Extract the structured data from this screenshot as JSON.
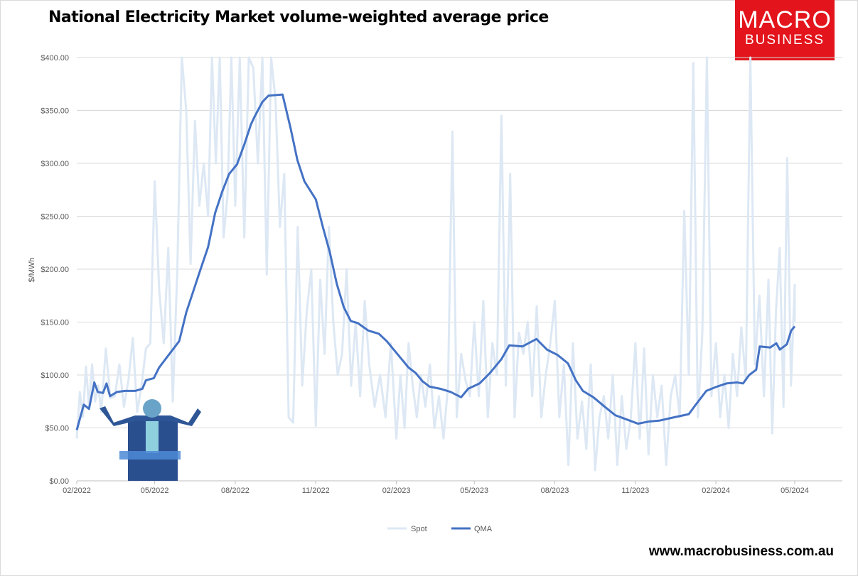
{
  "chart_data": {
    "type": "line",
    "title": "National Electricity Market volume-weighted average price",
    "ylabel": "$/MWh",
    "xlabel": "",
    "ylim": [
      0,
      400
    ],
    "yticks": [
      "$0.00",
      "$50.00",
      "$100.00",
      "$150.00",
      "$200.00",
      "$250.00",
      "$300.00",
      "$350.00",
      "$400.00"
    ],
    "xticks": [
      {
        "date": "2022-02-01",
        "label": "02/2022"
      },
      {
        "date": "2022-05-01",
        "label": "05/2022"
      },
      {
        "date": "2022-08-01",
        "label": "08/2022"
      },
      {
        "date": "2022-11-01",
        "label": "11/2022"
      },
      {
        "date": "2023-02-01",
        "label": "02/2023"
      },
      {
        "date": "2023-05-01",
        "label": "05/2023"
      },
      {
        "date": "2023-08-01",
        "label": "08/2023"
      },
      {
        "date": "2023-11-01",
        "label": "11/2023"
      },
      {
        "date": "2024-02-01",
        "label": "02/2024"
      },
      {
        "date": "2024-05-01",
        "label": "05/2024"
      }
    ],
    "grid": true,
    "legend_position": "bottom",
    "series": [
      {
        "name": "Spot",
        "color": "#dde8f4",
        "monthly_values": [
          {
            "month": "2022-02",
            "values": [
              40,
              84,
              60,
              108,
              70,
              110,
              75,
              90
            ]
          },
          {
            "month": "2022-03",
            "values": [
              65,
              125,
              78,
              80,
              110,
              70
            ]
          },
          {
            "month": "2022-04",
            "values": [
              95,
              135,
              65,
              90,
              125,
              130
            ]
          },
          {
            "month": "2022-05",
            "values": [
              283,
              180,
              130,
              220,
              75,
              200
            ]
          },
          {
            "month": "2022-06",
            "values": [
              400,
              350,
              205,
              340,
              260,
              300
            ]
          },
          {
            "month": "2022-07",
            "values": [
              250,
              400,
              300,
              400,
              230,
              270,
              400
            ]
          },
          {
            "month": "2022-08",
            "values": [
              260,
              400,
              230,
              400,
              390,
              300
            ]
          },
          {
            "month": "2022-09",
            "values": [
              400,
              195,
              400,
              360,
              240,
              290
            ]
          },
          {
            "month": "2022-10",
            "values": [
              60,
              55,
              240,
              90,
              160,
              200
            ]
          },
          {
            "month": "2022-11",
            "values": [
              52,
              190,
              120,
              240,
              150,
              100
            ]
          },
          {
            "month": "2022-12",
            "values": [
              120,
              200,
              90,
              150,
              80,
              170
            ]
          },
          {
            "month": "2023-01",
            "values": [
              110,
              70,
              100,
              60,
              130
            ]
          },
          {
            "month": "2023-02",
            "values": [
              40,
              100,
              50,
              130,
              90,
              60
            ]
          },
          {
            "month": "2023-03",
            "values": [
              100,
              70,
              110,
              50,
              80,
              40
            ]
          },
          {
            "month": "2023-04",
            "values": [
              90,
              330,
              60,
              120,
              95,
              80
            ]
          },
          {
            "month": "2023-05",
            "values": [
              150,
              80,
              170,
              60,
              130,
              100
            ]
          },
          {
            "month": "2023-06",
            "values": [
              345,
              90,
              290,
              60,
              140,
              120
            ]
          },
          {
            "month": "2023-07",
            "values": [
              150,
              80,
              165,
              60,
              100,
              130
            ]
          },
          {
            "month": "2023-08",
            "values": [
              170,
              60,
              110,
              15,
              130,
              40
            ]
          },
          {
            "month": "2023-09",
            "values": [
              75,
              30,
              110,
              10,
              60,
              80
            ]
          },
          {
            "month": "2023-10",
            "values": [
              40,
              100,
              15,
              80,
              30,
              60
            ]
          },
          {
            "month": "2023-11",
            "values": [
              130,
              40,
              125,
              25,
              100,
              60
            ]
          },
          {
            "month": "2023-12",
            "values": [
              90,
              15,
              80,
              100,
              60,
              255
            ]
          },
          {
            "month": "2024-01",
            "values": [
              100,
              395,
              60,
              140,
              400,
              80
            ]
          },
          {
            "month": "2024-02",
            "values": [
              130,
              60,
              100,
              50,
              120,
              80
            ]
          },
          {
            "month": "2024-03",
            "values": [
              145,
              95,
              400,
              110,
              175,
              80
            ]
          },
          {
            "month": "2024-04",
            "values": [
              190,
              45,
              160,
              220,
              70,
              305,
              90
            ]
          },
          {
            "month": "2024-05",
            "values": [
              185,
              150
            ]
          }
        ]
      },
      {
        "name": "QMA",
        "color": "#4472c4",
        "points": [
          [
            "2022-02-01",
            48
          ],
          [
            "2022-02-09",
            72
          ],
          [
            "2022-02-15",
            68
          ],
          [
            "2022-02-21",
            93
          ],
          [
            "2022-02-25",
            84
          ],
          [
            "2022-03-03",
            83
          ],
          [
            "2022-03-07",
            92
          ],
          [
            "2022-03-11",
            80
          ],
          [
            "2022-03-19",
            84
          ],
          [
            "2022-03-28",
            85
          ],
          [
            "2022-04-09",
            85
          ],
          [
            "2022-04-17",
            87
          ],
          [
            "2022-04-21",
            95
          ],
          [
            "2022-04-30",
            97
          ],
          [
            "2022-05-06",
            107
          ],
          [
            "2022-05-17",
            119
          ],
          [
            "2022-05-29",
            132
          ],
          [
            "2022-06-06",
            159
          ],
          [
            "2022-06-14",
            179
          ],
          [
            "2022-06-22",
            199
          ],
          [
            "2022-07-01",
            221
          ],
          [
            "2022-07-09",
            253
          ],
          [
            "2022-07-17",
            273
          ],
          [
            "2022-07-25",
            290
          ],
          [
            "2022-08-03",
            299
          ],
          [
            "2022-08-11",
            317
          ],
          [
            "2022-08-19",
            337
          ],
          [
            "2022-08-23",
            344
          ],
          [
            "2022-09-01",
            358
          ],
          [
            "2022-09-08",
            364
          ],
          [
            "2022-09-24",
            365
          ],
          [
            "2022-10-03",
            334
          ],
          [
            "2022-10-11",
            303
          ],
          [
            "2022-10-19",
            283
          ],
          [
            "2022-11-01",
            266
          ],
          [
            "2022-11-09",
            240
          ],
          [
            "2022-11-17",
            216
          ],
          [
            "2022-11-25",
            186
          ],
          [
            "2022-12-03",
            164
          ],
          [
            "2022-12-11",
            151
          ],
          [
            "2022-12-19",
            149
          ],
          [
            "2022-12-31",
            142
          ],
          [
            "2023-01-12",
            139
          ],
          [
            "2023-01-21",
            132
          ],
          [
            "2023-02-03",
            119
          ],
          [
            "2023-02-15",
            107
          ],
          [
            "2023-02-23",
            102
          ],
          [
            "2023-03-03",
            94
          ],
          [
            "2023-03-11",
            89
          ],
          [
            "2023-03-23",
            87
          ],
          [
            "2023-04-04",
            84
          ],
          [
            "2023-04-16",
            79
          ],
          [
            "2023-04-24",
            87
          ],
          [
            "2023-05-07",
            92
          ],
          [
            "2023-05-19",
            102
          ],
          [
            "2023-06-01",
            115
          ],
          [
            "2023-06-10",
            128
          ],
          [
            "2023-06-25",
            127
          ],
          [
            "2023-07-11",
            134
          ],
          [
            "2023-07-23",
            124
          ],
          [
            "2023-08-04",
            119
          ],
          [
            "2023-08-16",
            111
          ],
          [
            "2023-08-25",
            95
          ],
          [
            "2023-09-02",
            85
          ],
          [
            "2023-09-14",
            79
          ],
          [
            "2023-09-27",
            70
          ],
          [
            "2023-10-09",
            62
          ],
          [
            "2023-10-22",
            58
          ],
          [
            "2023-11-04",
            54
          ],
          [
            "2023-11-16",
            56
          ],
          [
            "2023-11-29",
            57
          ],
          [
            "2023-12-15",
            60
          ],
          [
            "2024-01-01",
            63
          ],
          [
            "2024-01-09",
            72
          ],
          [
            "2024-01-21",
            85
          ],
          [
            "2024-02-02",
            89
          ],
          [
            "2024-02-13",
            92
          ],
          [
            "2024-02-25",
            93
          ],
          [
            "2024-03-03",
            92
          ],
          [
            "2024-03-10",
            100
          ],
          [
            "2024-03-18",
            105
          ],
          [
            "2024-03-22",
            127
          ],
          [
            "2024-04-03",
            126
          ],
          [
            "2024-04-10",
            130
          ],
          [
            "2024-04-14",
            124
          ],
          [
            "2024-04-22",
            129
          ],
          [
            "2024-04-27",
            142
          ],
          [
            "2024-05-01",
            146
          ]
        ]
      }
    ]
  },
  "logo": {
    "line1": "MACRO",
    "line2": "BUSINESS"
  },
  "footer": {
    "url": "www.macrobusiness.com.au"
  }
}
